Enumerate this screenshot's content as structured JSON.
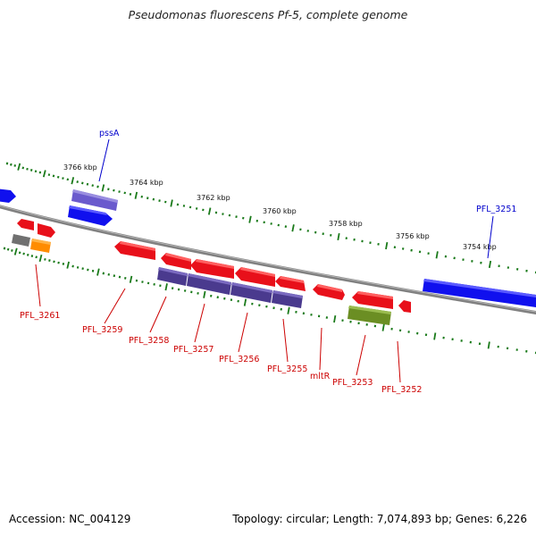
{
  "title": "Pseudomonas fluorescens Pf-5, complete genome",
  "footer": {
    "accession": "Accession: NC_004129",
    "summary": "Topology: circular; Length: 7,074,893 bp; Genes: 6,226"
  },
  "ticks": [
    {
      "label": "3766 kbp"
    },
    {
      "label": "3764 kbp"
    },
    {
      "label": "3762 kbp"
    },
    {
      "label": "3760 kbp"
    },
    {
      "label": "3758 kbp"
    },
    {
      "label": "3756 kbp"
    },
    {
      "label": "3754 kbp"
    }
  ],
  "labels": {
    "pssA": "pssA",
    "PFL_3251": "PFL_3251",
    "PFL_3261": "PFL_3261",
    "PFL_3259": "PFL_3259",
    "PFL_3258": "PFL_3258",
    "PFL_3257": "PFL_3257",
    "PFL_3256": "PFL_3256",
    "PFL_3255": "PFL_3255",
    "mltR": "mltR",
    "PFL_3253": "PFL_3253",
    "PFL_3252": "PFL_3252"
  },
  "colors": {
    "backbone": "#808080",
    "tick": "#1a7a1a",
    "gene_red": "#e8101a",
    "gene_blue": "#1010ee",
    "gene_purple": "#4a3a8e",
    "gene_lightpurple": "#6a5acd",
    "gene_olive": "#6b8e23",
    "gene_orange": "#ff8c00",
    "gene_gray": "#707070",
    "label_red": "#cc0000",
    "label_blue": "#0000cc"
  }
}
